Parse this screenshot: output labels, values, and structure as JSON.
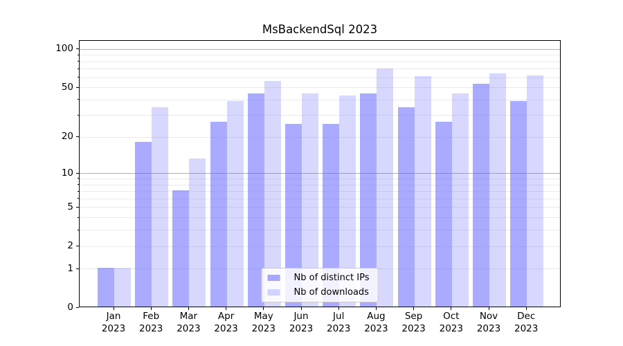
{
  "chart_data": {
    "type": "bar",
    "title": "MsBackendSql 2023",
    "xlabel": "",
    "ylabel": "",
    "y_scale": "log1p",
    "ylim": [
      0,
      116
    ],
    "grid": true,
    "categories": [
      "Jan",
      "Feb",
      "Mar",
      "Apr",
      "May",
      "Jun",
      "Jul",
      "Aug",
      "Sep",
      "Oct",
      "Nov",
      "Dec"
    ],
    "x_tick_year": "2023",
    "series": [
      {
        "name": "Nb of distinct IPs",
        "color": "rgba(100,100,255,0.55)",
        "values": [
          1,
          18,
          7,
          26,
          44,
          25,
          25,
          44,
          34,
          26,
          52,
          38
        ]
      },
      {
        "name": "Nb of downloads",
        "color": "rgba(100,100,255,0.25)",
        "values": [
          1,
          34,
          13,
          38,
          55,
          44,
          42,
          69,
          60,
          44,
          63,
          61
        ]
      }
    ],
    "y_ticks": [
      0,
      1,
      2,
      5,
      10,
      20,
      50,
      100
    ],
    "y_major_gridlines": [
      10,
      100
    ],
    "y_minor_gridlines": [
      1,
      2,
      3,
      4,
      5,
      6,
      7,
      8,
      9,
      20,
      30,
      40,
      50,
      60,
      70,
      80,
      90
    ],
    "legend": {
      "position": "lower center",
      "items": [
        "Nb of distinct IPs",
        "Nb of downloads"
      ]
    }
  }
}
